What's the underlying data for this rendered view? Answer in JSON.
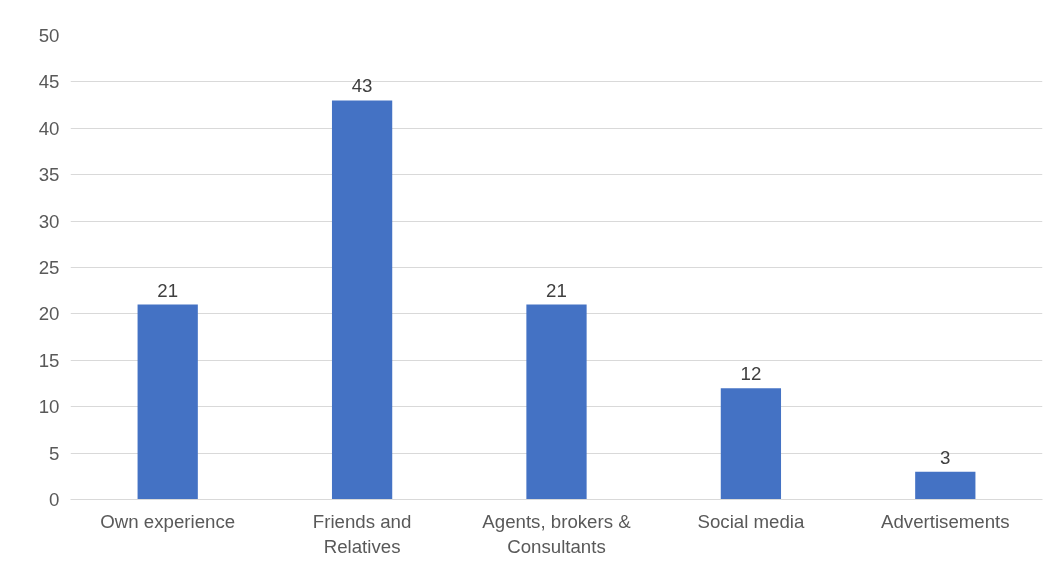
{
  "chart_data": {
    "type": "bar",
    "categories": [
      "Own experience",
      "Friends and Relatives",
      "Agents, brokers & Consultants",
      "Social media",
      "Advertisements"
    ],
    "values": [
      21,
      43,
      21,
      12,
      3
    ],
    "color": "#4472c4",
    "ylim": [
      0,
      50
    ],
    "yticks": [
      0,
      5,
      10,
      15,
      20,
      25,
      30,
      35,
      40,
      45,
      50
    ],
    "grid": "y",
    "data_labels": true
  }
}
